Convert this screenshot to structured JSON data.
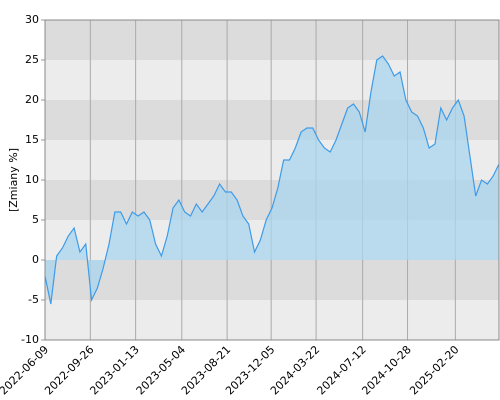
{
  "chart_data": {
    "type": "line",
    "y_label": "[Zmiany %]",
    "x": [
      "2022-06-09",
      "2022-06-23",
      "2022-07-07",
      "2022-07-21",
      "2022-08-04",
      "2022-08-18",
      "2022-09-01",
      "2022-09-15",
      "2022-09-29",
      "2022-10-13",
      "2022-10-27",
      "2022-11-10",
      "2022-11-24",
      "2022-12-08",
      "2022-12-22",
      "2023-01-05",
      "2023-01-19",
      "2023-02-02",
      "2023-02-16",
      "2023-03-02",
      "2023-03-16",
      "2023-03-30",
      "2023-04-13",
      "2023-04-27",
      "2023-05-11",
      "2023-05-25",
      "2023-06-08",
      "2023-06-22",
      "2023-07-06",
      "2023-07-20",
      "2023-08-03",
      "2023-08-17",
      "2023-08-31",
      "2023-09-14",
      "2023-09-28",
      "2023-10-12",
      "2023-10-26",
      "2023-11-09",
      "2023-11-23",
      "2023-12-07",
      "2023-12-21",
      "2024-01-04",
      "2024-01-18",
      "2024-02-01",
      "2024-02-15",
      "2024-02-29",
      "2024-03-14",
      "2024-03-28",
      "2024-04-11",
      "2024-04-25",
      "2024-05-09",
      "2024-05-23",
      "2024-06-06",
      "2024-06-20",
      "2024-07-04",
      "2024-07-18",
      "2024-08-01",
      "2024-08-15",
      "2024-08-29",
      "2024-09-12",
      "2024-09-26",
      "2024-10-10",
      "2024-10-24",
      "2024-11-07",
      "2024-11-21",
      "2024-12-05",
      "2024-12-19",
      "2025-01-02",
      "2025-01-16",
      "2025-01-30",
      "2025-02-13",
      "2025-02-27",
      "2025-03-13",
      "2025-03-27",
      "2025-04-10",
      "2025-04-24",
      "2025-05-08",
      "2025-05-22",
      "2025-06-05"
    ],
    "series": [
      {
        "color": "#3d9be9",
        "fill": "#a9d6ee",
        "values": [
          -2,
          -5.5,
          0.5,
          1.5,
          3,
          4,
          1,
          2,
          -5,
          -3.5,
          -1,
          2,
          6,
          6,
          4.5,
          6,
          5.5,
          6,
          5,
          2,
          0.5,
          3,
          6.5,
          7.5,
          6,
          5.5,
          7,
          6,
          7,
          8,
          9.5,
          8.5,
          8.5,
          7.5,
          5.5,
          4.5,
          1,
          2.5,
          5,
          6.5,
          9,
          12.5,
          12.5,
          14,
          16,
          16.5,
          16.5,
          15,
          14,
          13.5,
          15,
          17,
          19,
          19.5,
          18.5,
          16,
          21,
          25,
          25.5,
          24.5,
          23,
          23.5,
          20,
          18.5,
          18,
          16.5,
          14,
          14.5,
          19,
          17.5,
          19,
          20,
          18,
          13,
          8,
          10,
          9.5,
          10.5,
          12
        ]
      }
    ],
    "xlim": [
      "2022-06-09",
      "2025-06-05"
    ],
    "xticks": [
      "2022-06-09",
      "2022-09-26",
      "2023-01-13",
      "2023-05-04",
      "2023-08-21",
      "2023-12-05",
      "2024-03-22",
      "2024-07-12",
      "2024-10-28",
      "2025-02-20"
    ],
    "ylim": [
      -10,
      30
    ],
    "yticks": [
      -10,
      -5,
      0,
      5,
      10,
      15,
      20,
      25,
      30
    ],
    "band_colors": [
      "#dcdcdc",
      "#ececec"
    ],
    "grid": true
  }
}
